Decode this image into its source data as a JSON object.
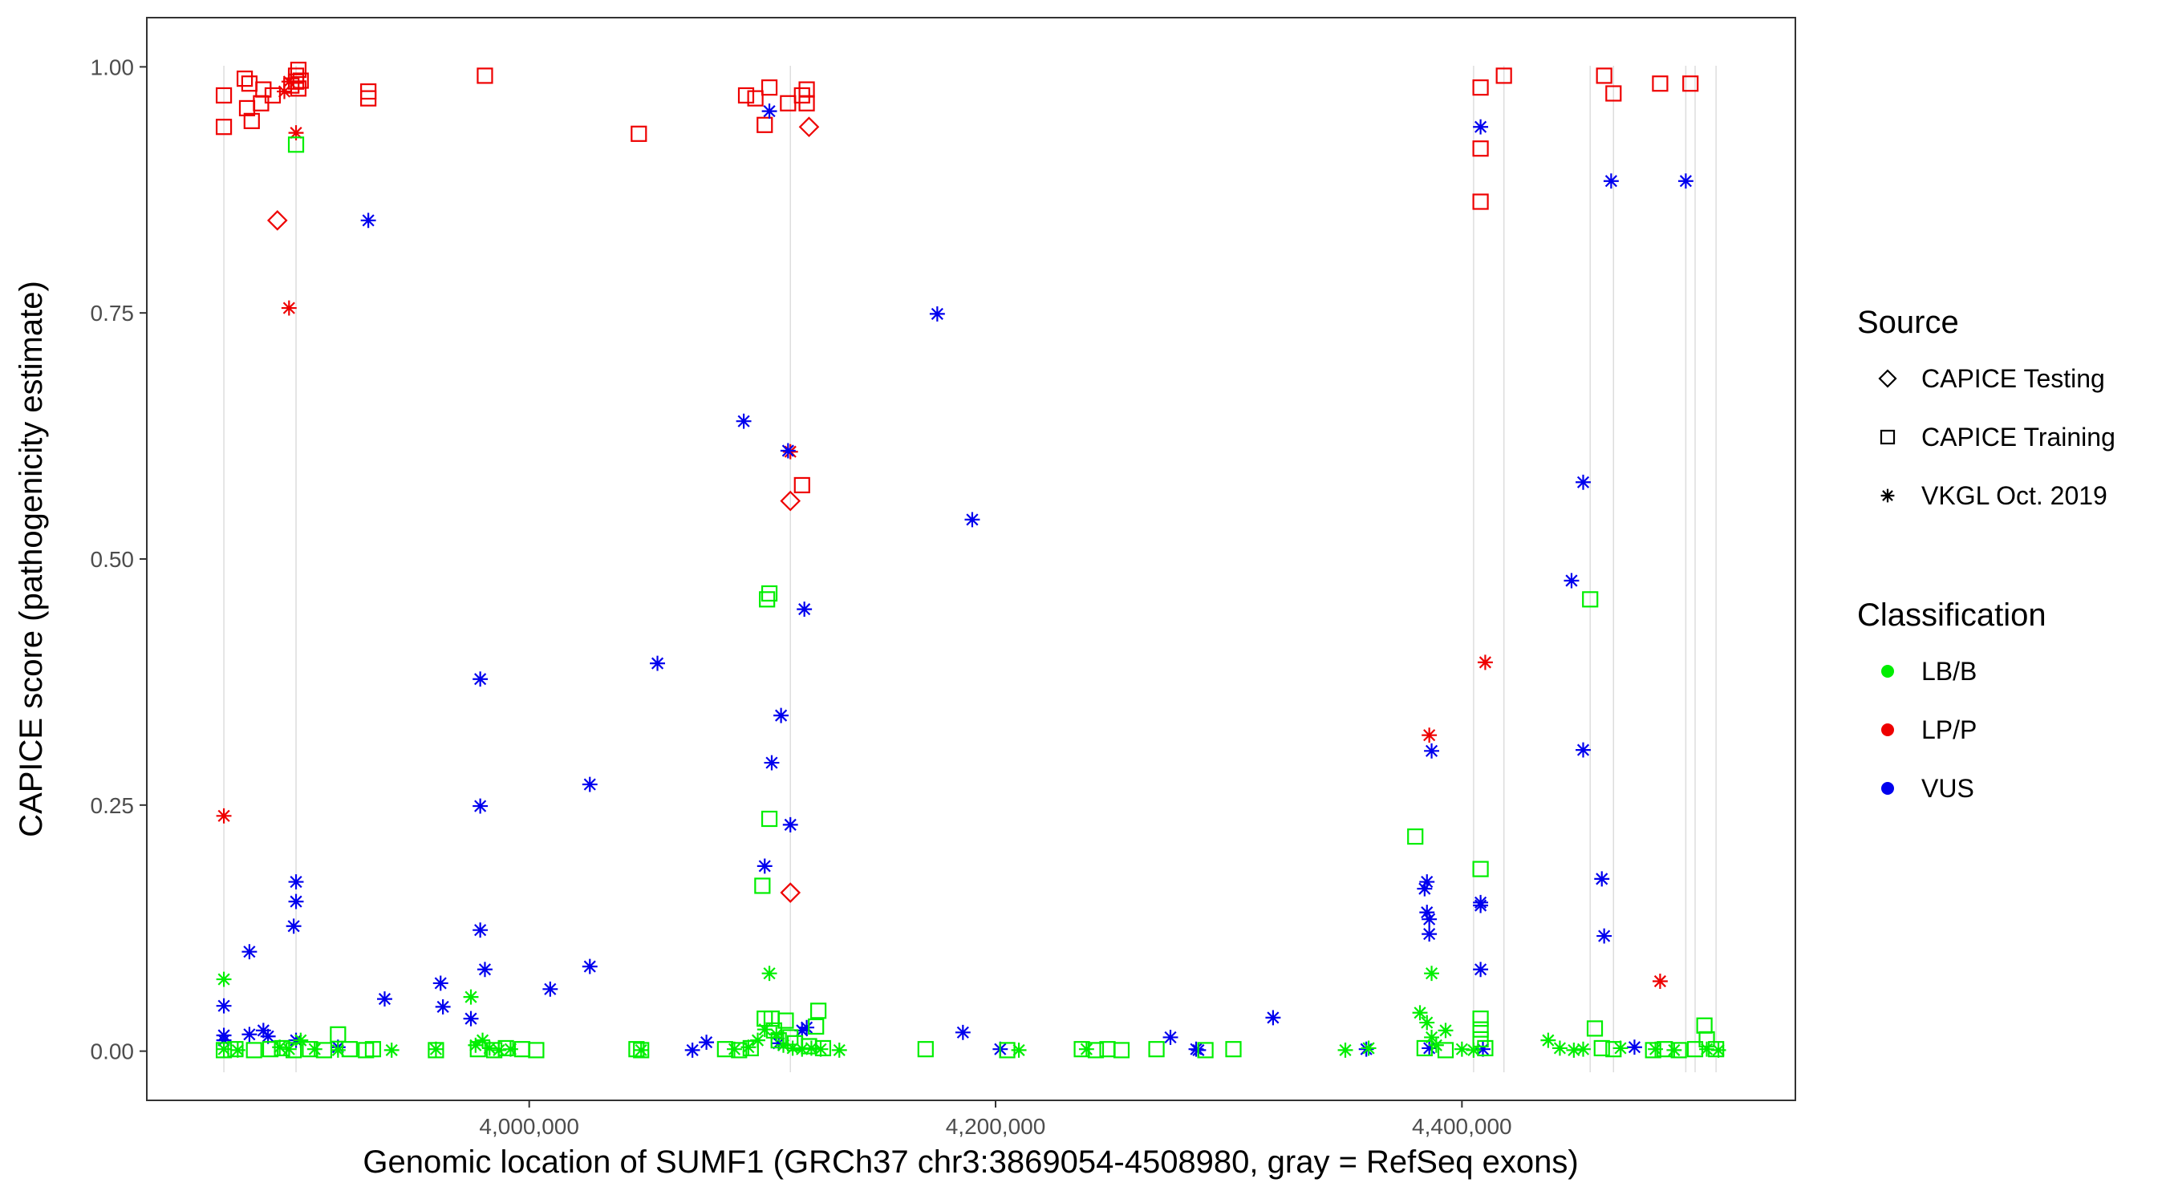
{
  "chart_data": {
    "type": "scatter",
    "xlabel": "Genomic location of SUMF1 (GRCh37 chr3:3869054-4508980, gray = RefSeq exons)",
    "ylabel": "CAPICE score (pathogenicity estimate)",
    "xlim": [
      3836000,
      4543000
    ],
    "ylim": [
      -0.05,
      1.05
    ],
    "x_ticks": [
      {
        "value": 4000000,
        "label": "4,000,000"
      },
      {
        "value": 4200000,
        "label": "4,200,000"
      },
      {
        "value": 4400000,
        "label": "4,400,000"
      }
    ],
    "y_ticks": [
      {
        "value": 0.0,
        "label": "0.00"
      },
      {
        "value": 0.25,
        "label": "0.25"
      },
      {
        "value": 0.5,
        "label": "0.50"
      },
      {
        "value": 0.75,
        "label": "0.75"
      },
      {
        "value": 1.0,
        "label": "1.00"
      }
    ],
    "exons": [
      3869054,
      3900000,
      4112000,
      4405000,
      4418000,
      4455000,
      4465000,
      4496000,
      4500000,
      4508980
    ],
    "legend": {
      "source_title": "Source",
      "source_items": [
        {
          "shape": "diamond",
          "label": "CAPICE Testing"
        },
        {
          "shape": "square",
          "label": "CAPICE Training"
        },
        {
          "shape": "asterisk",
          "label": "VKGL Oct. 2019"
        }
      ],
      "class_title": "Classification",
      "class_items": [
        {
          "key": "LB/B",
          "label": "LB/B",
          "color": "#00ee00"
        },
        {
          "key": "LP/P",
          "label": "LP/P",
          "color": "#ee0000"
        },
        {
          "key": "VUS",
          "label": "VUS",
          "color": "#0000ee"
        }
      ]
    },
    "series": [
      {
        "name": "LP/P",
        "shape": "square",
        "points": [
          [
            3869054,
            0.971
          ],
          [
            3869054,
            0.939
          ],
          [
            3878000,
            0.988
          ],
          [
            3880000,
            0.983
          ],
          [
            3879000,
            0.958
          ],
          [
            3881000,
            0.945
          ],
          [
            3885000,
            0.963
          ],
          [
            3886000,
            0.977
          ],
          [
            3890000,
            0.971
          ],
          [
            3898000,
            0.981
          ],
          [
            3900000,
            0.991
          ],
          [
            3900000,
            0.985
          ],
          [
            3901000,
            0.997
          ],
          [
            3901000,
            0.978
          ],
          [
            3902000,
            0.986
          ],
          [
            3931000,
            0.975
          ],
          [
            3931000,
            0.968
          ],
          [
            3981000,
            0.991
          ],
          [
            4047000,
            0.932
          ],
          [
            4093000,
            0.971
          ],
          [
            4097000,
            0.968
          ],
          [
            4101000,
            0.941
          ],
          [
            4103000,
            0.979
          ],
          [
            4111000,
            0.963
          ],
          [
            4117000,
            0.971
          ],
          [
            4119000,
            0.977
          ],
          [
            4119000,
            0.963
          ],
          [
            4117000,
            0.575
          ],
          [
            4408000,
            0.979
          ],
          [
            4408000,
            0.917
          ],
          [
            4408000,
            0.863
          ],
          [
            4418000,
            0.991
          ],
          [
            4461000,
            0.991
          ],
          [
            4465000,
            0.973
          ],
          [
            4485000,
            0.983
          ],
          [
            4498000,
            0.983
          ]
        ]
      },
      {
        "name": "LP/P",
        "shape": "asterisk",
        "points": [
          [
            3869054,
            0.239
          ],
          [
            3895000,
            0.975
          ],
          [
            3897000,
            0.985
          ],
          [
            3900000,
            0.933
          ],
          [
            3897000,
            0.755
          ],
          [
            4112000,
            0.609
          ],
          [
            4386000,
            0.321
          ],
          [
            4410000,
            0.395
          ],
          [
            4485000,
            0.071
          ]
        ]
      },
      {
        "name": "LP/P",
        "shape": "diamond",
        "points": [
          [
            3892000,
            0.844
          ],
          [
            4112000,
            0.559
          ],
          [
            4120000,
            0.939
          ],
          [
            4112000,
            0.161
          ]
        ]
      },
      {
        "name": "VUS",
        "shape": "asterisk",
        "points": [
          [
            3931000,
            0.844
          ],
          [
            3869054,
            0.016
          ],
          [
            3869054,
            0.011
          ],
          [
            3869054,
            0.046
          ],
          [
            3880000,
            0.017
          ],
          [
            3880000,
            0.101
          ],
          [
            3886000,
            0.021
          ],
          [
            3888000,
            0.015
          ],
          [
            3900000,
            0.172
          ],
          [
            3900000,
            0.152
          ],
          [
            3899000,
            0.127
          ],
          [
            3900000,
            0.011
          ],
          [
            3918000,
            0.004
          ],
          [
            3938000,
            0.053
          ],
          [
            3962000,
            0.069
          ],
          [
            3963000,
            0.045
          ],
          [
            3975000,
            0.033
          ],
          [
            3979000,
            0.378
          ],
          [
            3979000,
            0.249
          ],
          [
            3979000,
            0.123
          ],
          [
            3981000,
            0.083
          ],
          [
            4009000,
            0.063
          ],
          [
            4026000,
            0.271
          ],
          [
            4026000,
            0.086
          ],
          [
            4055000,
            0.394
          ],
          [
            4070000,
            0.001
          ],
          [
            4076000,
            0.009
          ],
          [
            4092000,
            0.64
          ],
          [
            4101000,
            0.188
          ],
          [
            4103000,
            0.955
          ],
          [
            4104000,
            0.293
          ],
          [
            4107000,
            0.008
          ],
          [
            4108000,
            0.341
          ],
          [
            4111000,
            0.61
          ],
          [
            4112000,
            0.23
          ],
          [
            4118000,
            0.449
          ],
          [
            4117000,
            0.021
          ],
          [
            4119000,
            0.024
          ],
          [
            4175000,
            0.749
          ],
          [
            4186000,
            0.019
          ],
          [
            4190000,
            0.54
          ],
          [
            4202000,
            0.002
          ],
          [
            4275000,
            0.014
          ],
          [
            4286000,
            0.002
          ],
          [
            4287000,
            0.001
          ],
          [
            4319000,
            0.034
          ],
          [
            4359000,
            0.002
          ],
          [
            4384000,
            0.165
          ],
          [
            4385000,
            0.172
          ],
          [
            4385000,
            0.141
          ],
          [
            4386000,
            0.134
          ],
          [
            4386000,
            0.119
          ],
          [
            4387000,
            0.305
          ],
          [
            4386000,
            0.003
          ],
          [
            4408000,
            0.939
          ],
          [
            4408000,
            0.151
          ],
          [
            4408000,
            0.148
          ],
          [
            4408000,
            0.083
          ],
          [
            4409000,
            0.002
          ],
          [
            4447000,
            0.478
          ],
          [
            4452000,
            0.578
          ],
          [
            4452000,
            0.306
          ],
          [
            4460000,
            0.175
          ],
          [
            4461000,
            0.117
          ],
          [
            4464000,
            0.884
          ],
          [
            4474000,
            0.004
          ],
          [
            4496000,
            0.884
          ]
        ]
      },
      {
        "name": "LB/B",
        "shape": "square",
        "points": [
          [
            3900000,
            0.921
          ],
          [
            3869054,
            0.001
          ],
          [
            3874000,
            0.002
          ],
          [
            3882000,
            0.001
          ],
          [
            3889000,
            0.002
          ],
          [
            3894000,
            0.003
          ],
          [
            3899000,
            0.001
          ],
          [
            3906000,
            0.002
          ],
          [
            3912000,
            0.001
          ],
          [
            3918000,
            0.017
          ],
          [
            3923000,
            0.002
          ],
          [
            3930000,
            0.001
          ],
          [
            3933000,
            0.002
          ],
          [
            3960000,
            0.001
          ],
          [
            3978000,
            0.002
          ],
          [
            3985000,
            0.001
          ],
          [
            3990000,
            0.003
          ],
          [
            3997000,
            0.002
          ],
          [
            4003000,
            0.001
          ],
          [
            4046000,
            0.002
          ],
          [
            4048000,
            0.001
          ],
          [
            4084000,
            0.002
          ],
          [
            4090000,
            0.001
          ],
          [
            4095000,
            0.003
          ],
          [
            4100000,
            0.168
          ],
          [
            4101000,
            0.033
          ],
          [
            4102000,
            0.459
          ],
          [
            4103000,
            0.465
          ],
          [
            4103000,
            0.236
          ],
          [
            4104000,
            0.033
          ],
          [
            4105000,
            0.021
          ],
          [
            4107000,
            0.011
          ],
          [
            4110000,
            0.031
          ],
          [
            4112000,
            0.014
          ],
          [
            4114000,
            0.008
          ],
          [
            4120000,
            0.005
          ],
          [
            4123000,
            0.025
          ],
          [
            4124000,
            0.041
          ],
          [
            4126000,
            0.003
          ],
          [
            4170000,
            0.002
          ],
          [
            4205000,
            0.001
          ],
          [
            4237000,
            0.002
          ],
          [
            4243000,
            0.001
          ],
          [
            4248000,
            0.002
          ],
          [
            4254000,
            0.001
          ],
          [
            4269000,
            0.002
          ],
          [
            4290000,
            0.001
          ],
          [
            4302000,
            0.002
          ],
          [
            4380000,
            0.218
          ],
          [
            4384000,
            0.003
          ],
          [
            4393000,
            0.001
          ],
          [
            4408000,
            0.185
          ],
          [
            4408000,
            0.033
          ],
          [
            4408000,
            0.022
          ],
          [
            4408000,
            0.012
          ],
          [
            4410000,
            0.003
          ],
          [
            4455000,
            0.459
          ],
          [
            4457000,
            0.023
          ],
          [
            4460000,
            0.003
          ],
          [
            4465000,
            0.002
          ],
          [
            4482000,
            0.001
          ],
          [
            4487000,
            0.002
          ],
          [
            4493000,
            0.001
          ],
          [
            4500000,
            0.002
          ],
          [
            4504000,
            0.026
          ],
          [
            4505000,
            0.012
          ],
          [
            4509000,
            0.002
          ]
        ]
      },
      {
        "name": "LB/B",
        "shape": "asterisk",
        "points": [
          [
            3869054,
            0.073
          ],
          [
            3869054,
            0.002
          ],
          [
            3875000,
            0.001
          ],
          [
            3893000,
            0.004
          ],
          [
            3897000,
            0.002
          ],
          [
            3902000,
            0.011
          ],
          [
            3908000,
            0.002
          ],
          [
            3918000,
            0.001
          ],
          [
            3941000,
            0.001
          ],
          [
            3960000,
            0.002
          ],
          [
            3975000,
            0.055
          ],
          [
            3977000,
            0.006
          ],
          [
            3980000,
            0.011
          ],
          [
            3983000,
            0.003
          ],
          [
            3987000,
            0.001
          ],
          [
            3992000,
            0.002
          ],
          [
            4048000,
            0.001
          ],
          [
            4088000,
            0.002
          ],
          [
            4094000,
            0.004
          ],
          [
            4098000,
            0.011
          ],
          [
            4101000,
            0.022
          ],
          [
            4103000,
            0.079
          ],
          [
            4106000,
            0.017
          ],
          [
            4109000,
            0.006
          ],
          [
            4113000,
            0.003
          ],
          [
            4117000,
            0.002
          ],
          [
            4121000,
            0.003
          ],
          [
            4125000,
            0.002
          ],
          [
            4133000,
            0.001
          ],
          [
            4210000,
            0.001
          ],
          [
            4239000,
            0.002
          ],
          [
            4350000,
            0.001
          ],
          [
            4360000,
            0.003
          ],
          [
            4382000,
            0.039
          ],
          [
            4385000,
            0.029
          ],
          [
            4387000,
            0.079
          ],
          [
            4387000,
            0.014
          ],
          [
            4389000,
            0.006
          ],
          [
            4393000,
            0.021
          ],
          [
            4400000,
            0.002
          ],
          [
            4405000,
            0.001
          ],
          [
            4437000,
            0.011
          ],
          [
            4442000,
            0.003
          ],
          [
            4448000,
            0.001
          ],
          [
            4452000,
            0.002
          ],
          [
            4468000,
            0.003
          ],
          [
            4483000,
            0.002
          ],
          [
            4491000,
            0.001
          ],
          [
            4505000,
            0.002
          ],
          [
            4510000,
            0.001
          ]
        ]
      }
    ]
  }
}
